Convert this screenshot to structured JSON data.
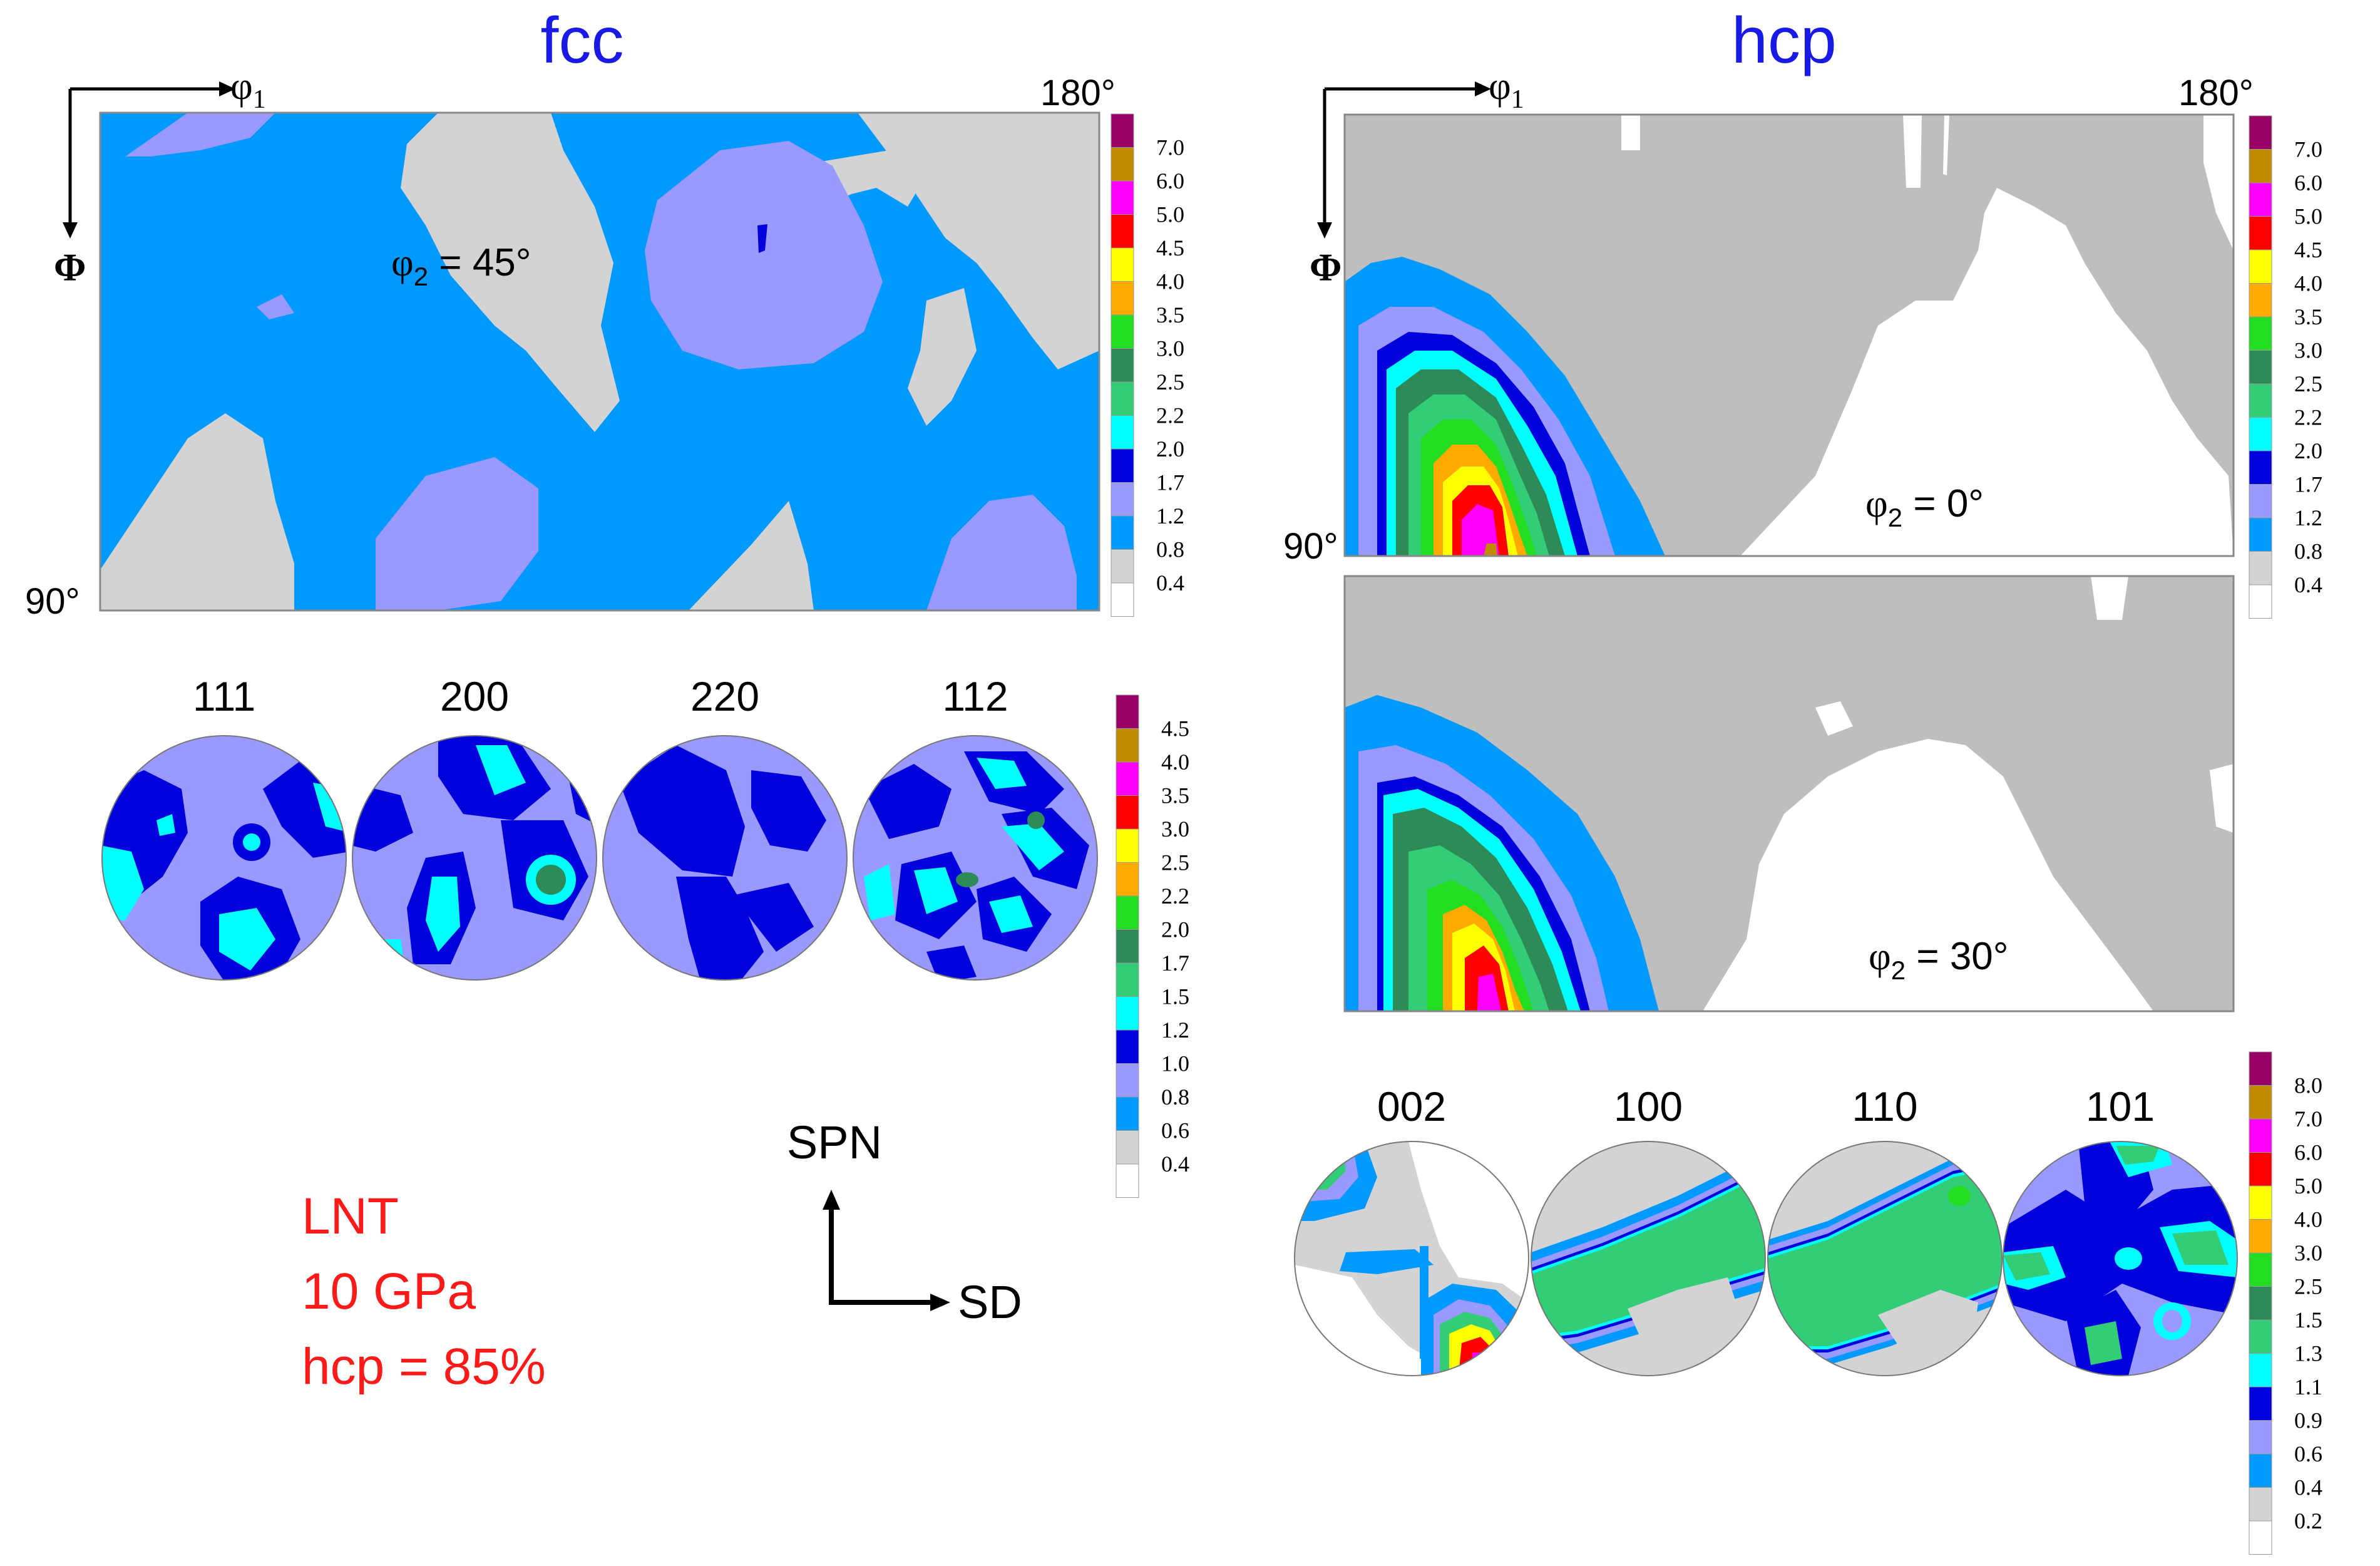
{
  "titles": {
    "fcc": "fcc",
    "hcp": "hcp"
  },
  "axes": {
    "phi1": "φ",
    "phi1_sub": "1",
    "Phi": "Φ",
    "deg180": "180°",
    "deg90": "90°"
  },
  "fcc": {
    "odf_label_prefix": "φ",
    "odf_label_sub": "2",
    "odf_label_suffix": " = 45°",
    "pole_figures": [
      "111",
      "200",
      "220",
      "112"
    ]
  },
  "hcp": {
    "odf1_label_prefix": "φ",
    "odf1_label_sub": "2",
    "odf1_label_suffix": " = 0°",
    "odf2_label_prefix": "φ",
    "odf2_label_sub": "2",
    "odf2_label_suffix": " = 30°",
    "pole_figures": [
      "002",
      "100",
      "110",
      "101"
    ]
  },
  "legends": {
    "fcc_odf": [
      "7.0",
      "6.0",
      "5.0",
      "4.5",
      "4.0",
      "3.5",
      "3.0",
      "2.5",
      "2.2",
      "2.0",
      "1.7",
      "1.2",
      "0.8",
      "0.4"
    ],
    "fcc_pf": [
      "4.5",
      "4.0",
      "3.5",
      "3.0",
      "2.5",
      "2.2",
      "2.0",
      "1.7",
      "1.5",
      "1.2",
      "1.0",
      "0.8",
      "0.6",
      "0.4"
    ],
    "hcp_odf": [
      "7.0",
      "6.0",
      "5.0",
      "4.5",
      "4.0",
      "3.5",
      "3.0",
      "2.5",
      "2.2",
      "2.0",
      "1.7",
      "1.2",
      "0.8",
      "0.4"
    ],
    "hcp_pf": [
      "8.0",
      "7.0",
      "6.0",
      "5.0",
      "4.0",
      "3.0",
      "2.5",
      "1.5",
      "1.3",
      "1.1",
      "0.9",
      "0.6",
      "0.4",
      "0.2"
    ]
  },
  "legend_colors": [
    "#990066",
    "#c28a00",
    "#ff00ff",
    "#ff0000",
    "#ffff00",
    "#ffaa00",
    "#22dd22",
    "#2e8b57",
    "#33cc77",
    "#00ffff",
    "#0000dd",
    "#9999ff",
    "#0099ff",
    "#d3d3d3",
    "#ffffff"
  ],
  "directions": {
    "spn": "SPN",
    "sd": "SD"
  },
  "conditions": [
    "LNT",
    "10 GPa",
    "hcp = 85%"
  ],
  "colors": {
    "title": "#1a1ae6",
    "conditions": "#ff1a1a",
    "text": "#000000"
  }
}
